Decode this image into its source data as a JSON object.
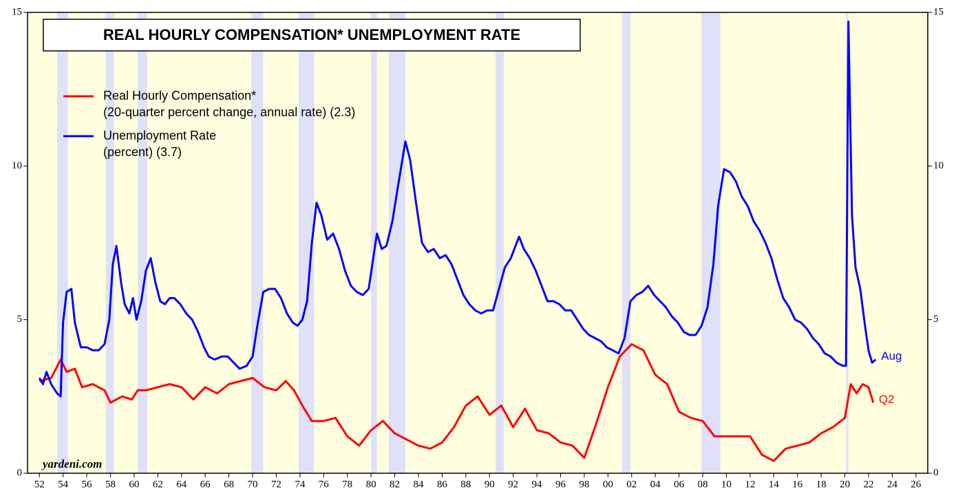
{
  "chart_data": {
    "type": "line",
    "title": "REAL HOURLY COMPENSATION* UNEMPLOYMENT RATE",
    "source": "yardeni.com",
    "xlim": [
      1951,
      2027
    ],
    "ylim": [
      0,
      15
    ],
    "yticks": [
      0,
      5,
      10,
      15
    ],
    "y2lim": [
      0,
      15
    ],
    "y2ticks": [
      0,
      5,
      10,
      15
    ],
    "xticks": [
      {
        "value": 1952,
        "label": "52"
      },
      {
        "value": 1954,
        "label": "54"
      },
      {
        "value": 1956,
        "label": "56"
      },
      {
        "value": 1958,
        "label": "58"
      },
      {
        "value": 1960,
        "label": "60"
      },
      {
        "value": 1962,
        "label": "62"
      },
      {
        "value": 1964,
        "label": "64"
      },
      {
        "value": 1966,
        "label": "66"
      },
      {
        "value": 1968,
        "label": "68"
      },
      {
        "value": 1970,
        "label": "70"
      },
      {
        "value": 1972,
        "label": "72"
      },
      {
        "value": 1974,
        "label": "74"
      },
      {
        "value": 1976,
        "label": "76"
      },
      {
        "value": 1978,
        "label": "78"
      },
      {
        "value": 1980,
        "label": "80"
      },
      {
        "value": 1982,
        "label": "82"
      },
      {
        "value": 1984,
        "label": "84"
      },
      {
        "value": 1986,
        "label": "86"
      },
      {
        "value": 1988,
        "label": "88"
      },
      {
        "value": 1990,
        "label": "90"
      },
      {
        "value": 1992,
        "label": "92"
      },
      {
        "value": 1994,
        "label": "94"
      },
      {
        "value": 1996,
        "label": "96"
      },
      {
        "value": 1998,
        "label": "98"
      },
      {
        "value": 2000,
        "label": "00"
      },
      {
        "value": 2002,
        "label": "02"
      },
      {
        "value": 2004,
        "label": "04"
      },
      {
        "value": 2006,
        "label": "06"
      },
      {
        "value": 2008,
        "label": "08"
      },
      {
        "value": 2010,
        "label": "10"
      },
      {
        "value": 2012,
        "label": "12"
      },
      {
        "value": 2014,
        "label": "14"
      },
      {
        "value": 2016,
        "label": "16"
      },
      {
        "value": 2018,
        "label": "18"
      },
      {
        "value": 2020,
        "label": "20"
      },
      {
        "value": 2022,
        "label": "22"
      },
      {
        "value": 2024,
        "label": "24"
      },
      {
        "value": 2026,
        "label": "26"
      }
    ],
    "recessions": [
      [
        1953.5,
        1954.4
      ],
      [
        1957.6,
        1958.3
      ],
      [
        1960.3,
        1961.1
      ],
      [
        1969.9,
        1970.9
      ],
      [
        1973.9,
        1975.2
      ],
      [
        1980.0,
        1980.5
      ],
      [
        1981.5,
        1982.9
      ],
      [
        1990.5,
        1991.2
      ],
      [
        2001.2,
        2001.9
      ],
      [
        2007.9,
        2009.5
      ],
      [
        2020.1,
        2020.3
      ]
    ],
    "recession_color": "#e0e0f8",
    "background": "#ffffe0",
    "series": [
      {
        "name": "Real Hourly Compensation*",
        "note": "(20-quarter percent change, annual rate) (2.3)",
        "end_label": "Q2",
        "color": "#ff0000",
        "x": [
          1952,
          1953,
          1953.8,
          1954.3,
          1955,
          1955.6,
          1956.5,
          1957.5,
          1958,
          1959,
          1959.8,
          1960.3,
          1961,
          1962,
          1963,
          1964,
          1965,
          1966,
          1967,
          1968,
          1969,
          1970,
          1971,
          1972,
          1972.8,
          1973.5,
          1974.2,
          1975,
          1976,
          1977,
          1978,
          1979,
          1980,
          1981,
          1982,
          1983,
          1984,
          1985,
          1986,
          1987,
          1988,
          1989,
          1990,
          1991,
          1992,
          1993,
          1994,
          1995,
          1996,
          1997,
          1998,
          1999,
          2000,
          2001,
          2002,
          2003,
          2004,
          2005,
          2006,
          2007,
          2008,
          2009,
          2010,
          2011,
          2012,
          2013,
          2014,
          2015,
          2016,
          2017,
          2018,
          2019,
          2020,
          2020.5,
          2021,
          2021.5,
          2022,
          2022.4
        ],
        "values": [
          3.0,
          3.1,
          3.7,
          3.3,
          3.4,
          2.8,
          2.9,
          2.7,
          2.3,
          2.5,
          2.4,
          2.7,
          2.7,
          2.8,
          2.9,
          2.8,
          2.4,
          2.8,
          2.6,
          2.9,
          3.0,
          3.1,
          2.8,
          2.7,
          3.0,
          2.7,
          2.2,
          1.7,
          1.7,
          1.8,
          1.2,
          0.9,
          1.4,
          1.7,
          1.3,
          1.1,
          0.9,
          0.8,
          1.0,
          1.5,
          2.2,
          2.5,
          1.9,
          2.2,
          1.5,
          2.1,
          1.4,
          1.3,
          1.0,
          0.9,
          0.5,
          1.6,
          2.8,
          3.8,
          4.2,
          4.0,
          3.2,
          2.9,
          2.0,
          1.8,
          1.7,
          1.2,
          1.2,
          1.2,
          1.2,
          0.6,
          0.4,
          0.8,
          0.9,
          1.0,
          1.3,
          1.5,
          1.8,
          2.9,
          2.6,
          2.9,
          2.8,
          2.3
        ]
      },
      {
        "name": "Unemployment Rate",
        "note": "(percent) (3.7)",
        "end_label": "Aug",
        "color": "#0000ff",
        "axis": "y2",
        "x": [
          1952.0,
          1952.3,
          1952.6,
          1953.0,
          1953.5,
          1953.8,
          1954.0,
          1954.3,
          1954.7,
          1955.0,
          1955.5,
          1956.0,
          1956.5,
          1957.0,
          1957.5,
          1957.9,
          1958.2,
          1958.5,
          1958.9,
          1959.2,
          1959.6,
          1959.9,
          1960.2,
          1960.6,
          1961.0,
          1961.4,
          1961.8,
          1962.2,
          1962.6,
          1963.0,
          1963.4,
          1963.9,
          1964.4,
          1964.9,
          1965.4,
          1965.9,
          1966.3,
          1966.8,
          1967.4,
          1967.9,
          1968.4,
          1968.9,
          1969.5,
          1970.0,
          1970.4,
          1970.9,
          1971.4,
          1971.9,
          1972.4,
          1972.9,
          1973.4,
          1973.8,
          1974.2,
          1974.6,
          1975.0,
          1975.4,
          1975.8,
          1976.3,
          1976.8,
          1977.3,
          1977.8,
          1978.3,
          1978.8,
          1979.3,
          1979.8,
          1980.3,
          1980.5,
          1980.9,
          1981.3,
          1981.8,
          1982.3,
          1982.9,
          1983.3,
          1983.8,
          1984.3,
          1984.8,
          1985.3,
          1985.8,
          1986.3,
          1986.8,
          1987.3,
          1987.8,
          1988.3,
          1988.8,
          1989.3,
          1989.8,
          1990.3,
          1990.8,
          1991.3,
          1991.8,
          1992.5,
          1992.9,
          1993.4,
          1993.9,
          1994.4,
          1994.9,
          1995.4,
          1995.9,
          1996.4,
          1996.9,
          1997.4,
          1997.9,
          1998.4,
          1998.9,
          1999.4,
          1999.9,
          2000.4,
          2000.9,
          2001.4,
          2001.9,
          2002.4,
          2002.9,
          2003.4,
          2003.9,
          2004.4,
          2004.9,
          2005.4,
          2005.9,
          2006.4,
          2006.9,
          2007.4,
          2007.9,
          2008.4,
          2008.9,
          2009.3,
          2009.8,
          2010.3,
          2010.8,
          2011.3,
          2011.8,
          2012.3,
          2012.8,
          2013.3,
          2013.8,
          2014.3,
          2014.8,
          2015.3,
          2015.8,
          2016.3,
          2016.8,
          2017.3,
          2017.8,
          2018.3,
          2018.8,
          2019.3,
          2019.8,
          2020.1,
          2020.3,
          2020.6,
          2020.9,
          2021.3,
          2021.7,
          2022.0,
          2022.3,
          2022.6
        ],
        "values": [
          3.1,
          2.9,
          3.3,
          2.9,
          2.6,
          2.5,
          4.9,
          5.9,
          6.0,
          4.9,
          4.1,
          4.1,
          4.0,
          4.0,
          4.2,
          5.0,
          6.8,
          7.4,
          6.2,
          5.5,
          5.2,
          5.7,
          5.0,
          5.6,
          6.6,
          7.0,
          6.2,
          5.6,
          5.5,
          5.7,
          5.7,
          5.5,
          5.2,
          5.0,
          4.6,
          4.1,
          3.8,
          3.7,
          3.8,
          3.8,
          3.6,
          3.4,
          3.5,
          3.8,
          4.8,
          5.9,
          6.0,
          6.0,
          5.7,
          5.2,
          4.9,
          4.8,
          5.0,
          5.6,
          7.5,
          8.8,
          8.4,
          7.6,
          7.8,
          7.3,
          6.6,
          6.1,
          5.9,
          5.8,
          6.0,
          7.3,
          7.8,
          7.3,
          7.4,
          8.2,
          9.4,
          10.8,
          10.2,
          8.8,
          7.5,
          7.2,
          7.3,
          7.0,
          7.1,
          6.8,
          6.3,
          5.8,
          5.5,
          5.3,
          5.2,
          5.3,
          5.3,
          6.0,
          6.7,
          7.0,
          7.7,
          7.3,
          7.0,
          6.6,
          6.1,
          5.6,
          5.6,
          5.5,
          5.3,
          5.3,
          5.0,
          4.7,
          4.5,
          4.4,
          4.3,
          4.1,
          4.0,
          3.9,
          4.4,
          5.6,
          5.8,
          5.9,
          6.1,
          5.8,
          5.6,
          5.4,
          5.1,
          4.9,
          4.6,
          4.5,
          4.5,
          4.8,
          5.4,
          6.8,
          8.7,
          9.9,
          9.8,
          9.5,
          9.0,
          8.7,
          8.2,
          7.9,
          7.5,
          7.0,
          6.3,
          5.7,
          5.4,
          5.0,
          4.9,
          4.7,
          4.4,
          4.2,
          3.9,
          3.8,
          3.6,
          3.5,
          3.5,
          14.7,
          8.4,
          6.7,
          6.0,
          4.8,
          4.0,
          3.6,
          3.7
        ]
      }
    ]
  }
}
